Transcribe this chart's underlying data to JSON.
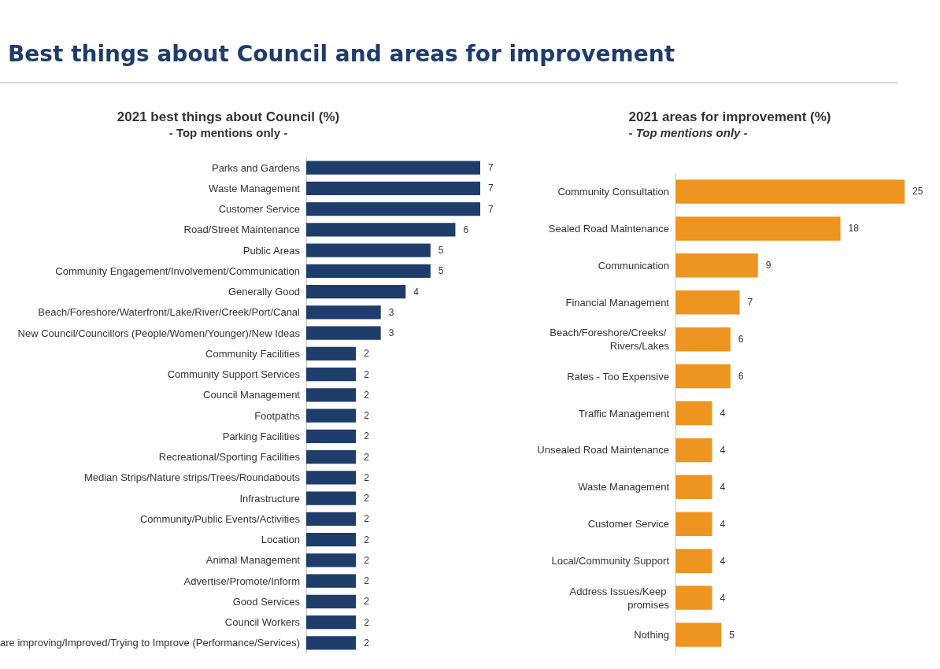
{
  "chart_data": [
    {
      "type": "bar",
      "orientation": "horizontal",
      "title": "2021 best things about Council (%)",
      "subtitle": "- Top mentions only -",
      "annotations": [
        "Best things about Council and areas for improvement"
      ],
      "categories": [
        "Parks and Gardens",
        "Waste Management",
        "Customer Service",
        "Road/Street Maintenance",
        "Public Areas",
        "Community Engagement/Involvement/Communication",
        "Generally Good",
        "Beach/Foreshore/Waterfront/Lake/River/Creek/Port/Canal",
        "New Council/Councillors (People/Women/Younger)/New Ideas",
        "Community Facilities",
        "Community Support Services",
        "Council Management",
        "Footpaths",
        "Parking Facilities",
        "Recreational/Sporting Facilities",
        "Median Strips/Nature strips/Trees/Roundabouts",
        "Infrastructure",
        "Community/Public Events/Activities",
        "Location",
        "Animal Management",
        "Advertise/Promote/Inform",
        "Good Services",
        "Council Workers",
        "are improving/Improved/Trying to Improve (Performance/Services)"
      ],
      "values": [
        7,
        7,
        7,
        6,
        5,
        5,
        4,
        3,
        3,
        2,
        2,
        2,
        2,
        2,
        2,
        2,
        2,
        2,
        2,
        2,
        2,
        2,
        2,
        2
      ],
      "color": "#1f3d6b",
      "data_labels": true,
      "grid": false,
      "legend": false
    },
    {
      "type": "bar",
      "orientation": "horizontal",
      "title": "2021 areas for improvement (%)",
      "subtitle": "- Top mentions only -",
      "categories": [
        "Community Consultation",
        "Sealed Road Maintenance",
        "Communication",
        "Financial Management",
        "Beach/Foreshore/Creeks/ Rivers/Lakes",
        "Rates - Too Expensive",
        "Traffic Management",
        "Unsealed Road Maintenance",
        "Waste Management",
        "Customer Service",
        "Local/Community Support",
        "Address Issues/Keep promises",
        "Nothing"
      ],
      "values": [
        25,
        18,
        9,
        7,
        6,
        6,
        4,
        4,
        4,
        4,
        4,
        4,
        5
      ],
      "color": "#ee9420",
      "data_labels": true,
      "grid": false,
      "legend": false
    }
  ]
}
